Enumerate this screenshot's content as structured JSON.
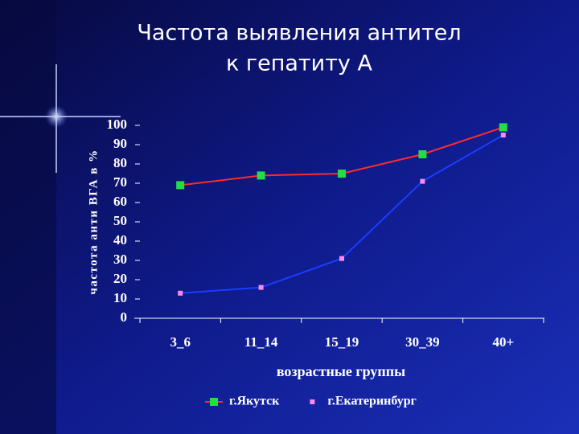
{
  "chart_data": {
    "type": "line",
    "title": [
      "Частота выявления антител",
      "к гепатиту А"
    ],
    "y_label": "частота анти ВГА в %",
    "x_label": "возрастные группы",
    "categories": [
      "3_6",
      "11_14",
      "15_19",
      "30_39",
      "40+"
    ],
    "series": [
      {
        "name": "г.Якутск",
        "color": "#ff2a2a",
        "marker_color": "#22dd44",
        "values": [
          69,
          74,
          75,
          85,
          99
        ]
      },
      {
        "name": "г.Екатеринбург",
        "color": "#1a3cff",
        "marker_color": "#ff88ee",
        "values": [
          13,
          16,
          31,
          71,
          95
        ]
      }
    ],
    "ylim": [
      0,
      100
    ],
    "yticks": [
      0,
      10,
      20,
      30,
      40,
      50,
      60,
      70,
      80,
      90,
      100
    ],
    "grid": false
  }
}
